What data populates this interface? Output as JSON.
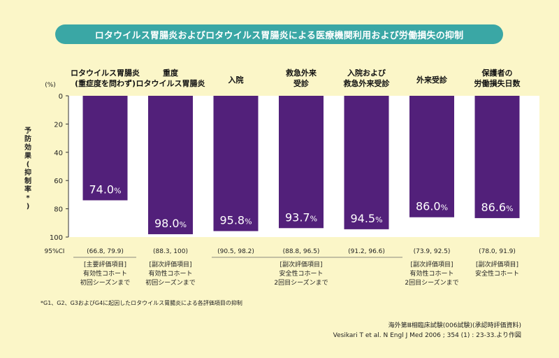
{
  "title": "ロタウイルス胃腸炎およびロタウイルス胃腸炎による医療機関利用および労働損失の抑制",
  "chart_data": {
    "type": "bar",
    "categories": [
      [
        "ロタウイルス胃腸炎",
        "(重症度を問わず)"
      ],
      [
        "重度",
        "ロタウイルス胃腸炎"
      ],
      [
        "入院"
      ],
      [
        "救急外来",
        "受診"
      ],
      [
        "入院および",
        "救急外来受診"
      ],
      [
        "外来受診"
      ],
      [
        "保護者の",
        "労働損失日数"
      ]
    ],
    "values": [
      74.0,
      98.0,
      95.8,
      93.7,
      94.5,
      86.0,
      86.6
    ],
    "value_labels": [
      "74.0",
      "98.0",
      "95.8",
      "93.7",
      "94.5",
      "86.0",
      "86.6"
    ],
    "value_unit": "%",
    "ylabel": "予防効果(抑制率*)",
    "yunit": "(%)",
    "ylim": [
      0,
      100
    ],
    "yticks": [
      "0",
      "20",
      "40",
      "60",
      "80",
      "100"
    ],
    "y_inverted": true,
    "ci_label": "95%CI",
    "ci": [
      "(66.8, 79.9)",
      "(88.3, 100)",
      "(90.5, 98.2)",
      "(88.8, 96.5)",
      "(91.2, 96.6)",
      "(73.9, 92.5)",
      "(78.0, 91.9)"
    ],
    "notes": [
      {
        "span": [
          0,
          0
        ],
        "lines": [
          "[主要評価項目]",
          "有効性コホート",
          "初回シーズンまで"
        ]
      },
      {
        "span": [
          1,
          1
        ],
        "lines": [
          "[副次評価項目]",
          "有効性コホート",
          "初回シーズンまで"
        ]
      },
      {
        "span": [
          2,
          4
        ],
        "lines": [
          "[副次評価項目]",
          "安全性コホート",
          "2回目シーズンまで"
        ]
      },
      {
        "span": [
          5,
          5
        ],
        "lines": [
          "[副次評価項目]",
          "有効性コホート",
          "2回目シーズンまで"
        ]
      },
      {
        "span": [
          6,
          6
        ],
        "lines": [
          "[副次評価項目]",
          "安全性コホート"
        ]
      }
    ],
    "colors": {
      "bar": "#52207a",
      "plot_bg": "#ffffff",
      "value_text": "#ffffff",
      "axis": "#333333",
      "divider": "#666666"
    }
  },
  "footnote": "*G1、G2、G3およびG4に起因したロタウイルス胃腸炎による各評価項目の抑制",
  "source": {
    "line1": "海外第Ⅲ相臨床試験(006試験)(承認時評価資料)",
    "line2": "Vesikari T et al. N Engl J Med 2006 ; 354 (1) : 23-33.より作図"
  }
}
